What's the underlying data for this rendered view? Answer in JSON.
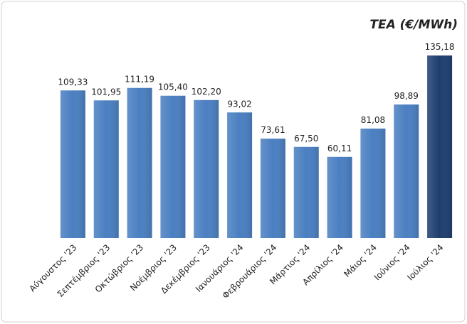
{
  "chart_data": {
    "type": "bar",
    "title": "TEA (€/MWh)",
    "categories": [
      "Αύγουστος '23",
      "Σεπτέμβριος '23",
      "Οκτώβριος '23",
      "Νοέμβριος '23",
      "Δεκέμβριος '23",
      "Ιανουάριος '24",
      "Φεβρουάριος '24",
      "Μάρτιος '24",
      "Απρίλιος '24",
      "Μάιος '24",
      "Ιούνιος '24",
      "Ιούλιος '24"
    ],
    "values": [
      109.33,
      101.95,
      111.19,
      105.4,
      102.2,
      93.02,
      73.61,
      67.5,
      60.11,
      81.08,
      98.89,
      135.18
    ],
    "value_labels": [
      "109,33",
      "101,95",
      "111,19",
      "105,40",
      "102,20",
      "93,02",
      "73,61",
      "67,50",
      "60,11",
      "81,08",
      "98,89",
      "135,18"
    ],
    "colors": [
      "#4a7fc1",
      "#4a7fc1",
      "#4a7fc1",
      "#4a7fc1",
      "#4a7fc1",
      "#4a7fc1",
      "#4a7fc1",
      "#4a7fc1",
      "#4a7fc1",
      "#4a7fc1",
      "#4a7fc1",
      "#1f3e6f"
    ],
    "ylim": [
      0,
      140
    ]
  }
}
